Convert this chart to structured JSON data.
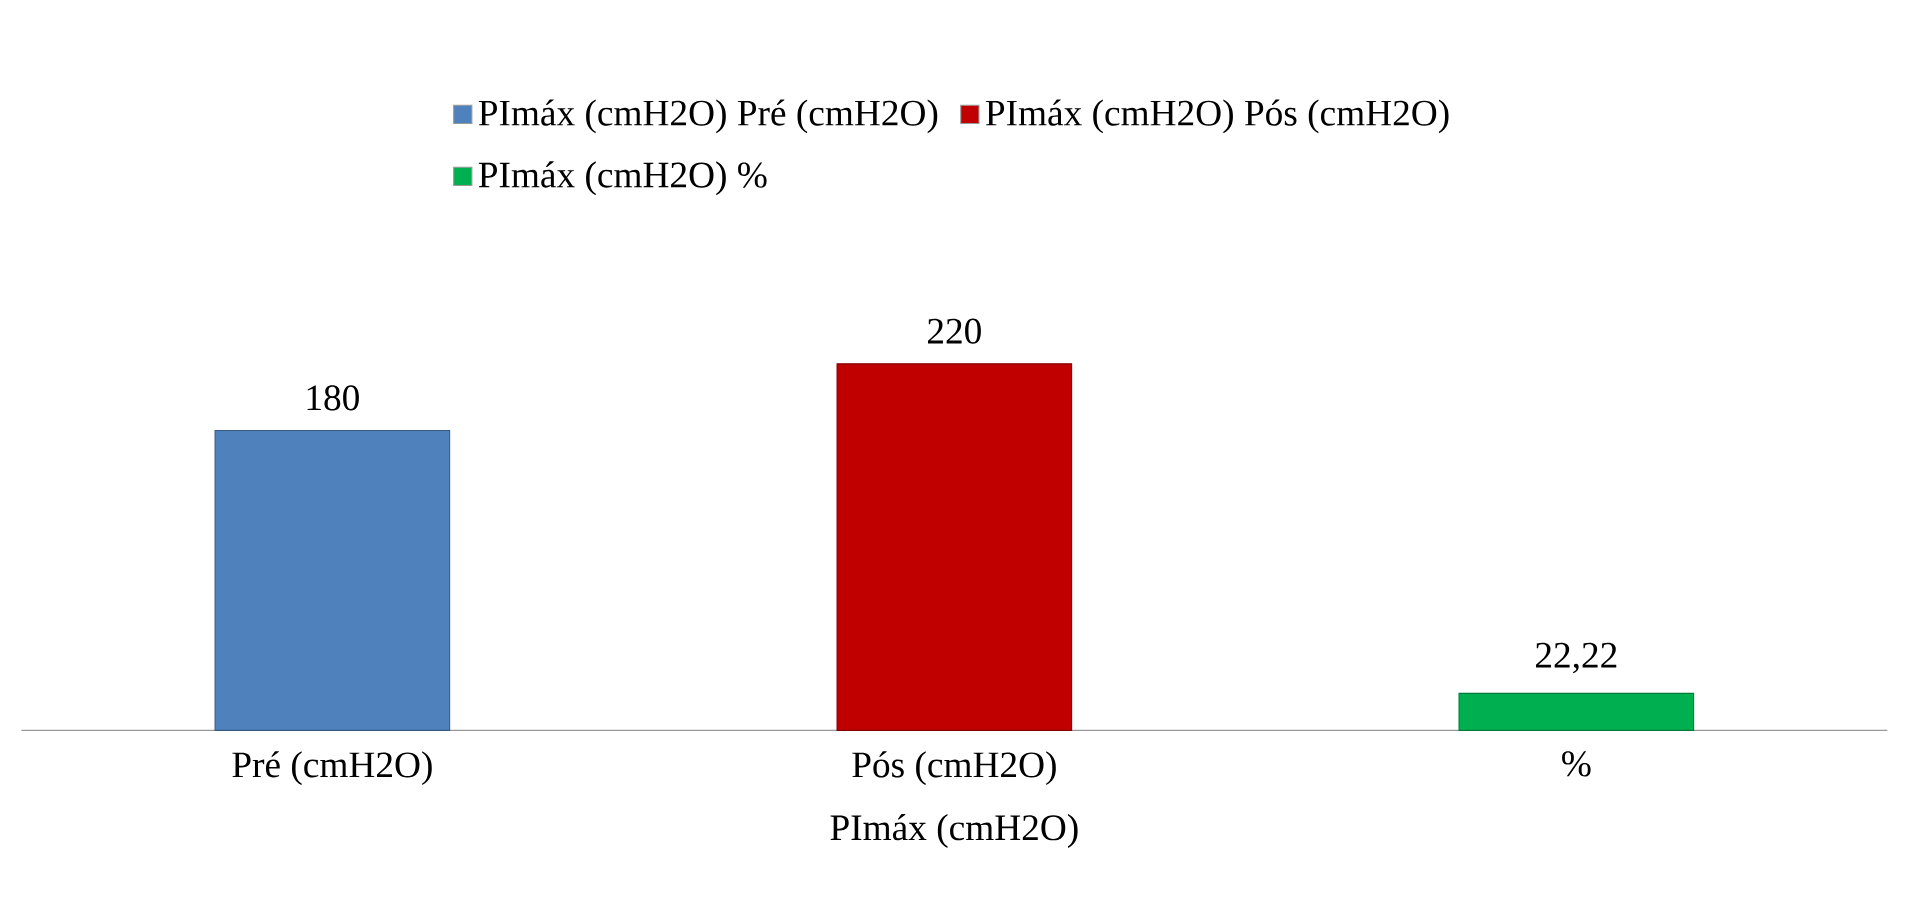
{
  "chart_data": {
    "type": "bar",
    "xlabel": "PImáx (cmH2O)",
    "categories": [
      "Pré (cmH2O)",
      "Pós (cmH2O)",
      "%"
    ],
    "series": [
      {
        "name": "PImáx (cmH2O) Pré (cmH2O)",
        "color": "#4f81bd",
        "values": [
          180,
          null,
          null
        ],
        "value_labels": [
          "180",
          null,
          null
        ]
      },
      {
        "name": "PImáx (cmH2O) Pós (cmH2O)",
        "color": "#c00000",
        "values": [
          null,
          220,
          null
        ],
        "value_labels": [
          null,
          "220",
          null
        ]
      },
      {
        "name": "PImáx (cmH2O) %",
        "color": "#00b050",
        "values": [
          null,
          null,
          22.22
        ],
        "value_labels": [
          null,
          null,
          "22,22"
        ]
      }
    ],
    "legend": "top"
  }
}
